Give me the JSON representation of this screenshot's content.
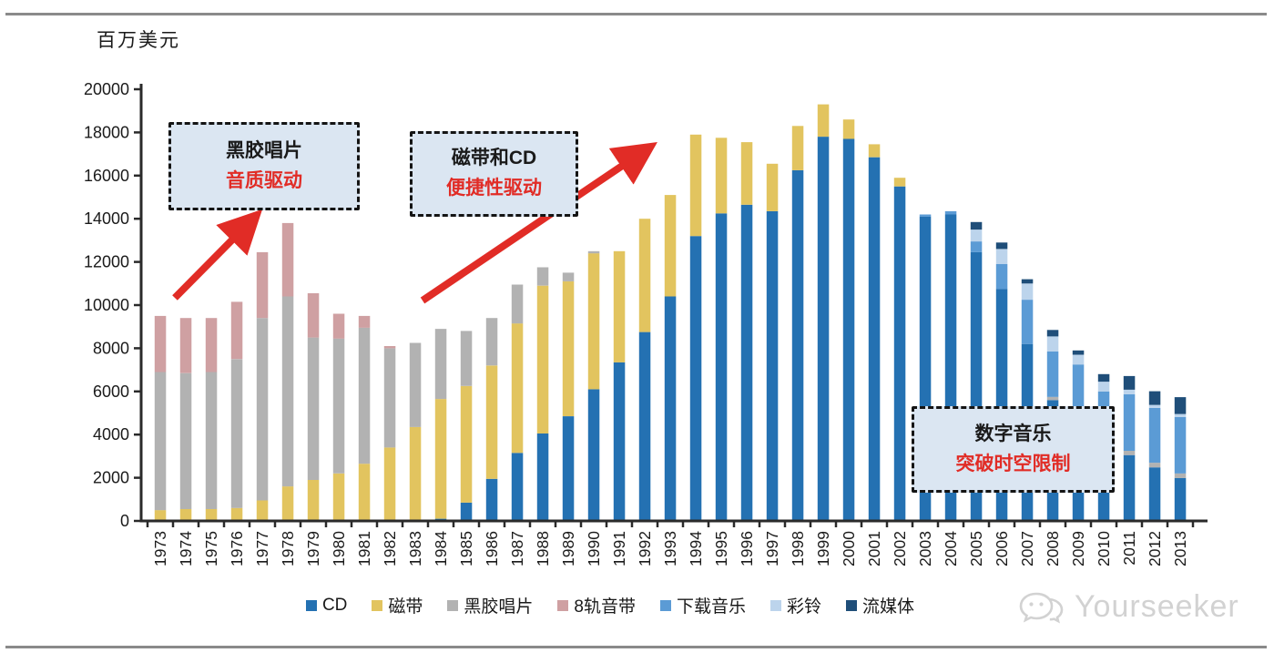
{
  "page": {
    "unit_label": "百万美元",
    "watermark": "Yourseeker"
  },
  "annotations": [
    {
      "title": "黑胶唱片",
      "subtitle": "音质驱动"
    },
    {
      "title": "磁带和CD",
      "subtitle": "便捷性驱动"
    },
    {
      "title": "数字音乐",
      "subtitle": "突破时空限制"
    }
  ],
  "colors": {
    "accent_red": "#e12c26",
    "callout_bg": "#dbe6f2",
    "axis": "#2a2a2a",
    "rule_gray": "#8a8a8a",
    "watermark_gray": "#d2d2d2"
  },
  "chart_data": {
    "type": "bar",
    "stacked": true,
    "title": "",
    "ylabel": "百万美元",
    "xlabel": "",
    "ylim": [
      0,
      20000
    ],
    "ytick_step": 2000,
    "grid": false,
    "legend_position": "bottom",
    "categories": [
      1973,
      1974,
      1975,
      1976,
      1977,
      1978,
      1979,
      1980,
      1981,
      1982,
      1983,
      1984,
      1985,
      1986,
      1987,
      1988,
      1989,
      1990,
      1991,
      1992,
      1993,
      1994,
      1995,
      1996,
      1997,
      1998,
      1999,
      2000,
      2001,
      2002,
      2003,
      2004,
      2005,
      2006,
      2007,
      2008,
      2009,
      2010,
      2011,
      2012,
      2013
    ],
    "series": [
      {
        "name": "CD",
        "color": "#2471b2",
        "values": [
          0,
          0,
          0,
          0,
          0,
          0,
          0,
          0,
          0,
          0,
          0,
          100,
          850,
          1950,
          3150,
          4050,
          4850,
          6100,
          7350,
          8750,
          10400,
          13200,
          14250,
          14650,
          14350,
          16250,
          17800,
          17700,
          16850,
          15500,
          14100,
          14200,
          12450,
          10750,
          8200,
          5600,
          4900,
          3700,
          3050,
          2480,
          1990
        ]
      },
      {
        "name": "磁带",
        "color": "#e2c45f",
        "values": [
          500,
          550,
          550,
          600,
          950,
          1600,
          1900,
          2200,
          2650,
          3400,
          4350,
          5550,
          5400,
          5250,
          6000,
          6850,
          6250,
          6300,
          5150,
          5250,
          4700,
          4700,
          3500,
          2900,
          2200,
          2050,
          1500,
          900,
          600,
          400,
          0,
          0,
          0,
          0,
          0,
          0,
          0,
          0,
          0,
          0,
          0
        ]
      },
      {
        "name": "黑胶唱片",
        "color": "#b2b2b2",
        "values": [
          6400,
          6300,
          6350,
          6900,
          8450,
          8800,
          6600,
          6250,
          6300,
          4600,
          3900,
          3250,
          2550,
          2200,
          1800,
          850,
          400,
          100,
          0,
          0,
          0,
          0,
          0,
          0,
          0,
          0,
          0,
          0,
          0,
          0,
          0,
          0,
          0,
          0,
          0,
          150,
          150,
          150,
          200,
          215,
          210
        ]
      },
      {
        "name": "8轨音带",
        "color": "#cfa0a2",
        "values": [
          2600,
          2550,
          2500,
          2650,
          3050,
          3400,
          2050,
          1150,
          550,
          100,
          0,
          0,
          0,
          0,
          0,
          0,
          0,
          0,
          0,
          0,
          0,
          0,
          0,
          0,
          0,
          0,
          0,
          0,
          0,
          0,
          0,
          0,
          0,
          0,
          0,
          0,
          0,
          0,
          0,
          0,
          0
        ]
      },
      {
        "name": "下载音乐",
        "color": "#5b9bd5",
        "values": [
          0,
          0,
          0,
          0,
          0,
          0,
          0,
          0,
          0,
          0,
          0,
          0,
          0,
          0,
          0,
          0,
          0,
          0,
          0,
          0,
          0,
          0,
          0,
          0,
          0,
          0,
          0,
          0,
          0,
          0,
          100,
          150,
          500,
          1150,
          2050,
          2100,
          2200,
          2150,
          2620,
          2540,
          2615
        ]
      },
      {
        "name": "彩铃",
        "color": "#bcd4ec",
        "values": [
          0,
          0,
          0,
          0,
          0,
          0,
          0,
          0,
          0,
          0,
          0,
          0,
          0,
          0,
          0,
          0,
          0,
          0,
          0,
          0,
          0,
          0,
          0,
          0,
          0,
          0,
          0,
          0,
          0,
          0,
          0,
          0,
          550,
          700,
          750,
          700,
          450,
          450,
          210,
          140,
          140
        ]
      },
      {
        "name": "流媒体",
        "color": "#1f4e79",
        "values": [
          0,
          0,
          0,
          0,
          0,
          0,
          0,
          0,
          0,
          0,
          0,
          0,
          0,
          0,
          0,
          0,
          0,
          0,
          0,
          0,
          0,
          0,
          0,
          0,
          0,
          0,
          0,
          0,
          0,
          0,
          0,
          0,
          350,
          300,
          200,
          300,
          200,
          350,
          635,
          635,
          780
        ]
      }
    ]
  }
}
